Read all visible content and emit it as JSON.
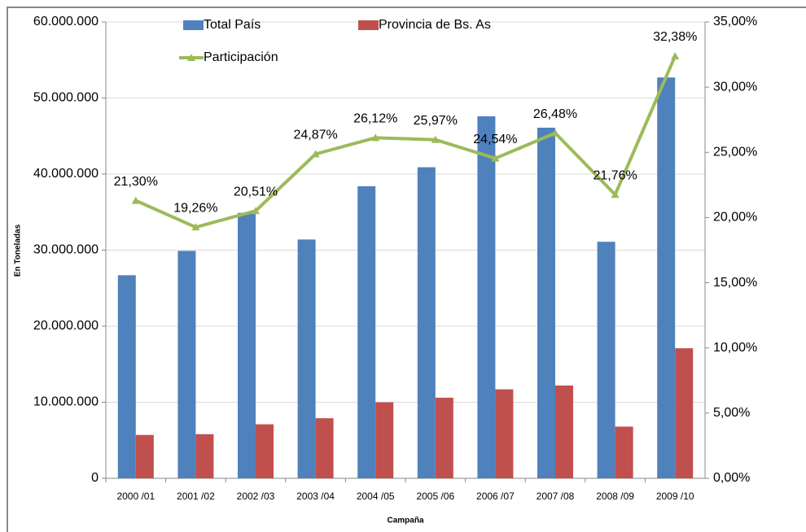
{
  "chart_data": {
    "type": "bar_line",
    "x_label": "Campaña",
    "y_label": "En Toneladas",
    "categories": [
      "2000 /01",
      "2001 /02",
      "2002 /03",
      "2003 /04",
      "2004 /05",
      "2005 /06",
      "2006 /07",
      "2007 /08",
      "2008 /09",
      "2009 /10"
    ],
    "series": [
      {
        "name": "Total País",
        "color": "#4f81bd",
        "type": "bar",
        "values": [
          26700000,
          29900000,
          34900000,
          31400000,
          38400000,
          40900000,
          47600000,
          46100000,
          31100000,
          52700000
        ]
      },
      {
        "name": "Provincia de Bs. As",
        "color": "#c0504d",
        "type": "bar",
        "values": [
          5700000,
          5800000,
          7100000,
          7900000,
          10000000,
          10600000,
          11700000,
          12200000,
          6800000,
          17100000
        ]
      },
      {
        "name": "Participación",
        "color": "#9bbb59",
        "type": "line",
        "axis": "y2",
        "values": [
          21.3,
          19.26,
          20.51,
          24.87,
          26.12,
          25.97,
          24.54,
          26.48,
          21.76,
          32.38
        ],
        "value_labels": [
          "21,30%",
          "19,26%",
          "20,51%",
          "24,87%",
          "26,12%",
          "25,97%",
          "24,54%",
          "26,48%",
          "21,76%",
          "32,38%"
        ]
      }
    ],
    "ylim": [
      0,
      60000000
    ],
    "yticks": [
      0,
      {
        "value": 10000000,
        "label": "10.000.000"
      },
      {
        "value": 20000000,
        "label": "20.000.000"
      },
      {
        "value": 30000000,
        "label": "30.000.000"
      },
      {
        "value": 40000000,
        "label": "40.000.000"
      },
      {
        "value": 50000000,
        "label": "50.000.000"
      },
      {
        "value": 60000000,
        "label": "60.000.000"
      }
    ],
    "y2lim": [
      0,
      35
    ],
    "y2ticks": [
      {
        "value": 0,
        "label": "0,00%"
      },
      {
        "value": 5,
        "label": "5,00%"
      },
      {
        "value": 10,
        "label": "10,00%"
      },
      {
        "value": 15,
        "label": "15,00%"
      },
      {
        "value": 20,
        "label": "20,00%"
      },
      {
        "value": 25,
        "label": "25,00%"
      },
      {
        "value": 30,
        "label": "30,00%"
      },
      {
        "value": 35,
        "label": "35,00%"
      }
    ],
    "grid": true,
    "legend": "top"
  }
}
